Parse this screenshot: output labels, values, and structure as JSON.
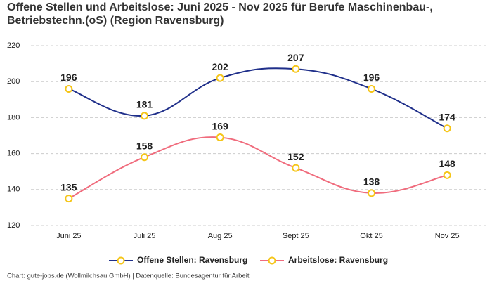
{
  "chart_data": {
    "type": "line",
    "title": [
      "Offene Stellen und Arbeitslose: Juni 2025 - Nov 2025 für Berufe Maschinenbau-,",
      "Betriebstechn.(oS) (Region Ravensburg)"
    ],
    "categories": [
      "Juni 25",
      "Juli 25",
      "Aug 25",
      "Sept 25",
      "Okt 25",
      "Nov 25"
    ],
    "series": [
      {
        "name": "Offene Stellen: Ravensburg",
        "color": "#1f2f8a",
        "values": [
          196,
          181,
          202,
          207,
          196,
          174
        ]
      },
      {
        "name": "Arbeitslose: Ravensburg",
        "color": "#f06c7d",
        "values": [
          135,
          158,
          169,
          152,
          138,
          148
        ]
      }
    ],
    "marker_color": "#f5c518",
    "ylim": [
      120,
      220
    ],
    "yticks": [
      120,
      140,
      160,
      180,
      200,
      220
    ],
    "grid": true,
    "legend": "bottom",
    "footer": "Chart: gute-jobs.de (Wollmilchsau GmbH) | Datenquelle: Bundesagentur für Arbeit"
  }
}
